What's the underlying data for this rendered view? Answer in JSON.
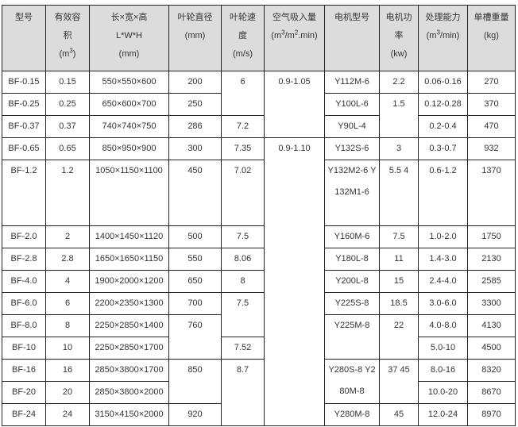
{
  "headers": [
    {
      "l1": "型号"
    },
    {
      "l1": "有效容",
      "l2": "积",
      "l3": "(m",
      "sup": "3",
      "l3b": ")"
    },
    {
      "l1": "长×宽×高",
      "l2": "L*W*H",
      "l3": "(mm)"
    },
    {
      "l1": "叶轮直径",
      "l2": "(mm)"
    },
    {
      "l1": "叶轮速",
      "l2": "度",
      "l3": "(m/s)"
    },
    {
      "l1": "空气吸入量",
      "l2a": "(m",
      "sup1": "3",
      "l2b": "/m",
      "sup2": "2",
      "l2c": ".min)"
    },
    {
      "l1": "电机型号"
    },
    {
      "l1": "电机功",
      "l2": "率",
      "l3": "(kw)"
    },
    {
      "l1": "处理能力",
      "l2a": "(m",
      "sup": "3",
      "l2b": "/min)"
    },
    {
      "l1": "单槽重量",
      "l2": "(kg)"
    }
  ],
  "rows": [
    {
      "model": "BF-0.15",
      "vol": "0.15",
      "dim": "550×550×600",
      "dia": "200",
      "speed": "6",
      "air": "0.9-1.05",
      "motor": "Y112M-6",
      "power": "2.2",
      "cap": "0.06-0.16",
      "wt": "270"
    },
    {
      "model": "BF-0.25",
      "vol": "0.25",
      "dim": "650×600×700",
      "dia": "250",
      "motor": "Y100L-6",
      "power": "1.5",
      "cap": "0.12-0.28",
      "wt": "370"
    },
    {
      "model": "BF-0.37",
      "vol": "0.37",
      "dim": "740×740×750",
      "dia": "286",
      "speed": "7.2",
      "motor": "Y90L-4",
      "cap": "0.2-0.4",
      "wt": "470"
    },
    {
      "model": "BF-0.65",
      "vol": "0.65",
      "dim": "850×950×900",
      "dia": "300",
      "speed": "7.35",
      "air": "0.9-1.10",
      "motor": "Y132S-6",
      "power": "3",
      "cap": "0.3-0.7",
      "wt": "932"
    },
    {
      "model": "BF-1.2",
      "vol": "1.2",
      "dim": "1050×1150×1100",
      "dia": "450",
      "speed": "7.02",
      "motor": "Y132M2-6 Y132M1-6",
      "power": "5.5 4",
      "cap": "0.6-1.2",
      "wt": "1370"
    },
    {
      "model": "BF-2.0",
      "vol": "2",
      "dim": "1400×1450×1120",
      "dia": "500",
      "speed": "7.5",
      "motor": "Y160M-6",
      "power": "7.5",
      "cap": "1.0-2.0",
      "wt": "1750"
    },
    {
      "model": "BF-2.8",
      "vol": "2.8",
      "dim": "1650×1650×1150",
      "dia": "550",
      "speed": "8.06",
      "motor": "Y180L-8",
      "power": "11",
      "cap": "1.4-3.0",
      "wt": "2130"
    },
    {
      "model": "BF-4.0",
      "vol": "4",
      "dim": "1900×2000×1200",
      "dia": "650",
      "speed": "8",
      "motor": "Y200L-8",
      "power": "15",
      "cap": "2.4-4.0",
      "wt": "2585"
    },
    {
      "model": "BF-6.0",
      "vol": "6",
      "dim": "2200×2350×1300",
      "dia": "700",
      "speed": "7.5",
      "motor": "Y225S-8",
      "power": "18.5",
      "cap": "3.0-6.0",
      "wt": "3300"
    },
    {
      "model": "BF-8.0",
      "vol": "8",
      "dim": "2250×2850×1400",
      "dia": "760",
      "motor": "Y225M-8",
      "power": "22",
      "cap": "4.0-8.0",
      "wt": "4130"
    },
    {
      "model": "BF-10",
      "vol": "10",
      "dim": "2250×2850×1700",
      "speed": "7.52",
      "cap": "5.0-10",
      "wt": "4500"
    },
    {
      "model": "BF-16",
      "vol": "16",
      "dim": "2850×3800×1700",
      "dia": "850",
      "speed": "8.7",
      "motor": "Y280S-8 Y280M-8",
      "power": "37 45",
      "cap": "8.0-16",
      "wt": "8320"
    },
    {
      "model": "BF-20",
      "vol": "20",
      "dim": "2850×3800×2000",
      "cap": "10.0-20",
      "wt": "8670"
    },
    {
      "model": "BF-24",
      "vol": "24",
      "dim": "3150×4150×2000",
      "dia": "920",
      "motor": "Y280M-8",
      "power": "45",
      "cap": "12.0-24",
      "wt": "8970"
    }
  ]
}
